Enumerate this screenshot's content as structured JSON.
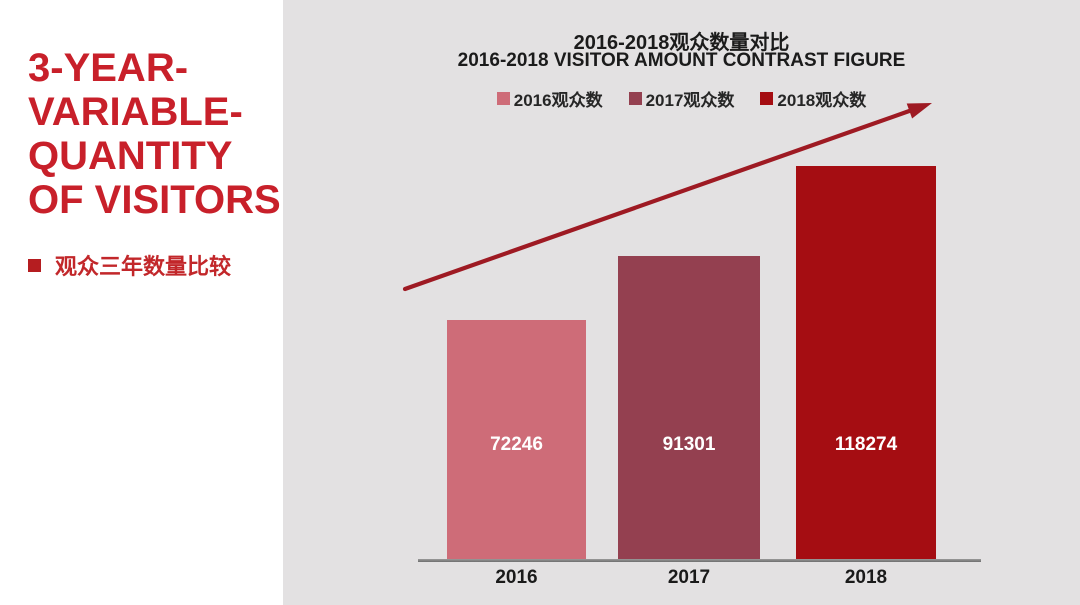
{
  "sidebar": {
    "title": "3-YEAR-\nVARIABLE-\nQUANTITY\nOF VISITORS",
    "title_color": "#c8202a",
    "bullet_color": "#b51d20",
    "subtitle": "观众三年数量比较",
    "subtitle_color": "#c2272a"
  },
  "chart_data": {
    "type": "bar",
    "title": "2016-2018观众数量对比",
    "subtitle": "2016-2018 VISITOR AMOUNT CONTRAST FIGURE",
    "categories": [
      "2016",
      "2017",
      "2018"
    ],
    "values": [
      72246,
      91301,
      118274
    ],
    "series": [
      {
        "name": "2016观众数",
        "value": 72246,
        "color": "#ce6c78"
      },
      {
        "name": "2017观众数",
        "value": 91301,
        "color": "#944050"
      },
      {
        "name": "2018观众数",
        "value": 118274,
        "color": "#a50d12"
      }
    ],
    "legend_position": "top",
    "grid": false,
    "ylim": [
      0,
      130000
    ],
    "xlabel": "",
    "ylabel": "",
    "background_color": "#e3e1e2",
    "axis_color": "#6e6e6e",
    "trend_arrow_color": "#9e1a23",
    "value_label_color": "#ffffff"
  }
}
